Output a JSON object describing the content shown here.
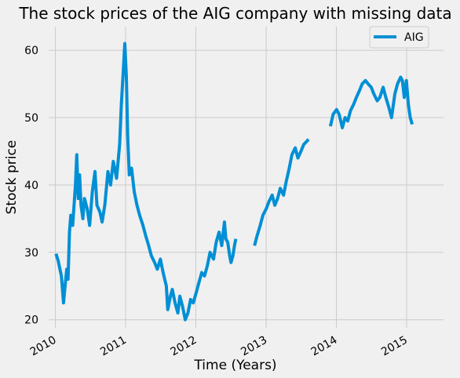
{
  "chart_data": {
    "type": "line",
    "title": "The stock prices of the AIG company with missing data",
    "xlabel": "Time (Years)",
    "ylabel": "Stock price",
    "x_tick_labels": [
      "2010",
      "2011",
      "2012",
      "2013",
      "2014",
      "2015"
    ],
    "y_tick_labels": [
      "20",
      "30",
      "40",
      "50",
      "60"
    ],
    "x_ticks": [
      "2010-01-01",
      "2011-01-01",
      "2012-01-01",
      "2013-01-01",
      "2014-01-01",
      "2015-01-01"
    ],
    "y_ticks": [
      20,
      30,
      40,
      50,
      60
    ],
    "xlim": [
      "2009-11-27",
      "2015-07-12"
    ],
    "ylim": [
      18.8,
      63.5
    ],
    "grid": true,
    "legend_position": "top-right",
    "colors": {
      "line": "#008fd5",
      "background": "#f0f0f0",
      "grid": "#cbcbcb"
    },
    "series": [
      {
        "name": "AIG",
        "segments": [
          [
            [
              "2010-01-04",
              29.8
            ],
            [
              "2010-01-15",
              28.8
            ],
            [
              "2010-02-01",
              26.5
            ],
            [
              "2010-02-08",
              24.0
            ],
            [
              "2010-02-12",
              22.5
            ],
            [
              "2010-02-22",
              25.5
            ],
            [
              "2010-03-01",
              27.5
            ],
            [
              "2010-03-08",
              26.0
            ],
            [
              "2010-03-15",
              33.0
            ],
            [
              "2010-03-22",
              35.5
            ],
            [
              "2010-04-01",
              34.0
            ],
            [
              "2010-04-15",
              40.0
            ],
            [
              "2010-04-22",
              44.5
            ],
            [
              "2010-04-30",
              38.0
            ],
            [
              "2010-05-07",
              41.5
            ],
            [
              "2010-05-14",
              37.0
            ],
            [
              "2010-05-24",
              35.0
            ],
            [
              "2010-06-01",
              38.0
            ],
            [
              "2010-06-15",
              36.5
            ],
            [
              "2010-06-28",
              34.0
            ],
            [
              "2010-07-12",
              39.0
            ],
            [
              "2010-07-26",
              42.0
            ],
            [
              "2010-08-05",
              37.0
            ],
            [
              "2010-08-20",
              36.0
            ],
            [
              "2010-09-01",
              34.5
            ],
            [
              "2010-09-15",
              37.0
            ],
            [
              "2010-10-01",
              42.0
            ],
            [
              "2010-10-15",
              40.0
            ],
            [
              "2010-10-29",
              43.5
            ],
            [
              "2010-11-15",
              41.0
            ],
            [
              "2010-12-01",
              46.0
            ],
            [
              "2010-12-10",
              52.0
            ],
            [
              "2010-12-20",
              57.0
            ],
            [
              "2010-12-28",
              61.0
            ],
            [
              "2011-01-05",
              56.0
            ],
            [
              "2011-01-12",
              47.0
            ],
            [
              "2011-01-20",
              41.5
            ],
            [
              "2011-02-01",
              42.5
            ],
            [
              "2011-02-15",
              39.0
            ],
            [
              "2011-03-01",
              37.0
            ],
            [
              "2011-03-15",
              35.5
            ],
            [
              "2011-04-01",
              34.0
            ],
            [
              "2011-04-15",
              32.5
            ],
            [
              "2011-05-01",
              31.0
            ],
            [
              "2011-05-15",
              29.5
            ],
            [
              "2011-06-01",
              28.5
            ],
            [
              "2011-06-15",
              27.5
            ],
            [
              "2011-07-01",
              29.0
            ],
            [
              "2011-07-15",
              27.0
            ],
            [
              "2011-08-01",
              25.0
            ],
            [
              "2011-08-08",
              21.5
            ],
            [
              "2011-08-22",
              23.5
            ],
            [
              "2011-09-01",
              24.5
            ],
            [
              "2011-09-15",
              22.5
            ],
            [
              "2011-09-30",
              21.0
            ],
            [
              "2011-10-10",
              23.5
            ],
            [
              "2011-10-24",
              22.0
            ],
            [
              "2011-11-07",
              20.0
            ],
            [
              "2011-11-21",
              21.0
            ],
            [
              "2011-12-05",
              23.0
            ],
            [
              "2011-12-19",
              22.5
            ],
            [
              "2012-01-03",
              24.0
            ],
            [
              "2012-01-17",
              25.5
            ],
            [
              "2012-02-01",
              27.0
            ],
            [
              "2012-02-15",
              26.5
            ],
            [
              "2012-03-01",
              28.0
            ],
            [
              "2012-03-15",
              30.0
            ],
            [
              "2012-04-02",
              29.0
            ],
            [
              "2012-04-16",
              31.5
            ],
            [
              "2012-05-01",
              33.0
            ],
            [
              "2012-05-15",
              31.0
            ],
            [
              "2012-05-29",
              34.5
            ],
            [
              "2012-06-05",
              32.0
            ],
            [
              "2012-06-15",
              31.5
            ],
            [
              "2012-06-25",
              29.5
            ],
            [
              "2012-07-02",
              28.5
            ],
            [
              "2012-07-12",
              29.5
            ],
            [
              "2012-07-20",
              31.0
            ],
            [
              "2012-07-27",
              32.0
            ]
          ],
          [
            [
              "2012-11-01",
              31.0
            ],
            [
              "2012-11-15",
              32.5
            ],
            [
              "2012-12-01",
              34.0
            ],
            [
              "2012-12-15",
              35.5
            ],
            [
              "2013-01-02",
              36.5
            ],
            [
              "2013-01-15",
              37.5
            ],
            [
              "2013-02-01",
              38.5
            ],
            [
              "2013-02-15",
              37.0
            ],
            [
              "2013-03-01",
              38.0
            ],
            [
              "2013-03-15",
              39.5
            ],
            [
              "2013-04-01",
              38.5
            ],
            [
              "2013-04-15",
              40.5
            ],
            [
              "2013-05-01",
              42.5
            ],
            [
              "2013-05-15",
              44.5
            ],
            [
              "2013-06-01",
              45.5
            ],
            [
              "2013-06-15",
              44.0
            ],
            [
              "2013-07-01",
              45.0
            ],
            [
              "2013-07-15",
              46.0
            ],
            [
              "2013-08-01",
              46.5
            ],
            [
              "2013-08-09",
              46.8
            ]
          ],
          [
            [
              "2013-12-01",
              48.7
            ],
            [
              "2013-12-15",
              50.5
            ],
            [
              "2014-01-02",
              51.2
            ],
            [
              "2014-01-15",
              50.5
            ],
            [
              "2014-02-01",
              48.5
            ],
            [
              "2014-02-15",
              50.0
            ],
            [
              "2014-03-01",
              49.5
            ],
            [
              "2014-03-15",
              51.0
            ],
            [
              "2014-04-01",
              52.0
            ],
            [
              "2014-04-15",
              53.0
            ],
            [
              "2014-05-01",
              54.0
            ],
            [
              "2014-05-15",
              55.0
            ],
            [
              "2014-06-01",
              55.5
            ],
            [
              "2014-06-15",
              55.0
            ],
            [
              "2014-07-01",
              54.5
            ],
            [
              "2014-07-15",
              53.5
            ],
            [
              "2014-08-01",
              52.5
            ],
            [
              "2014-08-15",
              53.0
            ],
            [
              "2014-09-01",
              54.5
            ],
            [
              "2014-09-15",
              53.0
            ],
            [
              "2014-10-01",
              51.5
            ],
            [
              "2014-10-15",
              50.0
            ],
            [
              "2014-11-01",
              53.5
            ],
            [
              "2014-11-15",
              55.0
            ],
            [
              "2014-12-01",
              56.0
            ],
            [
              "2014-12-10",
              55.5
            ],
            [
              "2014-12-20",
              53.0
            ],
            [
              "2014-12-31",
              55.5
            ],
            [
              "2015-01-10",
              52.0
            ],
            [
              "2015-01-20",
              50.0
            ],
            [
              "2015-01-30",
              49.0
            ]
          ]
        ]
      }
    ]
  }
}
